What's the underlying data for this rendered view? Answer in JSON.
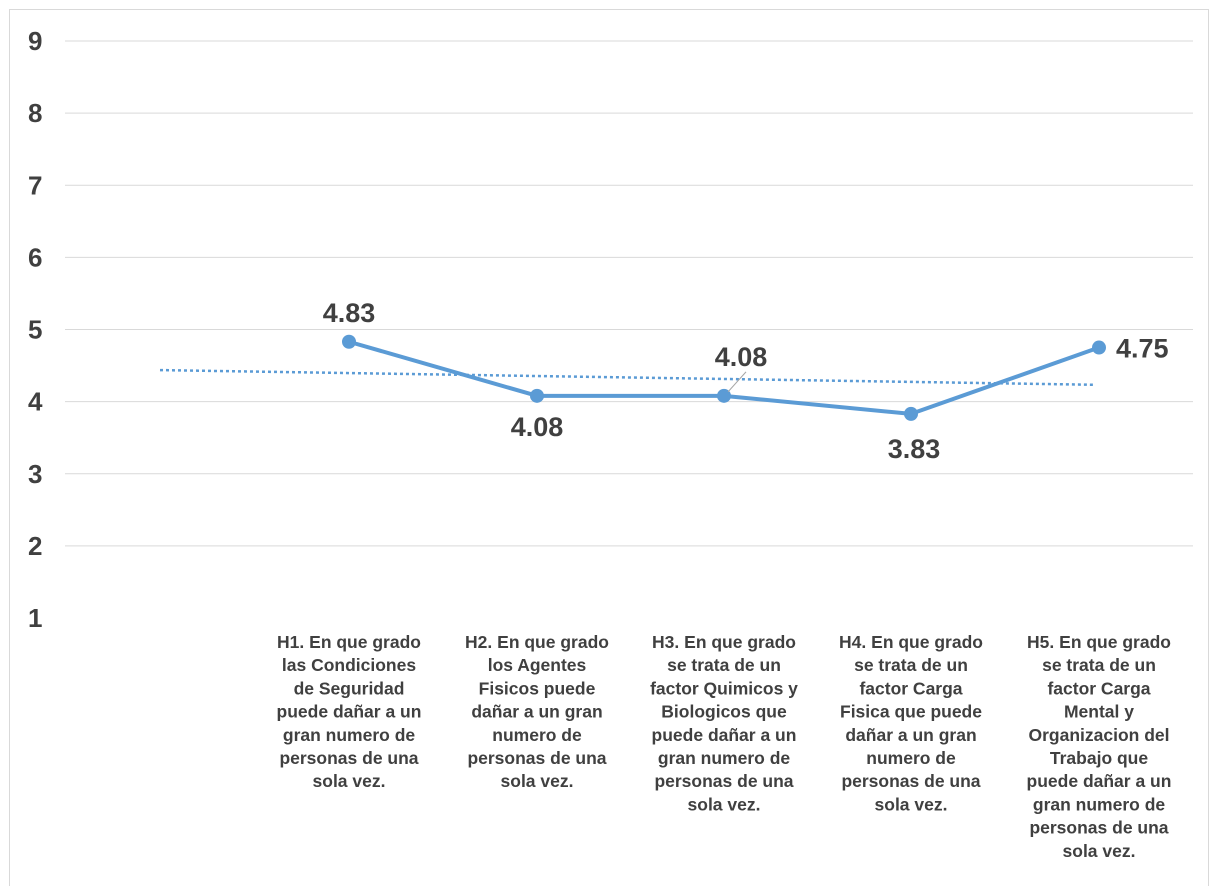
{
  "chart_data": {
    "type": "line",
    "categories": [
      [
        "H1. En que grado",
        "las Condiciones",
        "de Seguridad",
        "puede dañar a un",
        "gran numero de",
        "personas de una",
        "sola vez."
      ],
      [
        "H2. En que grado",
        "los Agentes",
        "Fisicos puede",
        "dañar a un gran",
        "numero de",
        "personas de una",
        "sola vez."
      ],
      [
        "H3. En que grado",
        "se trata de un",
        "factor Quimicos y",
        "Biologicos que",
        "puede dañar a un",
        "gran numero de",
        "personas de una",
        "sola vez."
      ],
      [
        "H4. En que grado",
        "se trata de un",
        "factor Carga",
        "Fisica que puede",
        "dañar a un gran",
        "numero de",
        "personas de una",
        "sola vez."
      ],
      [
        "H5. En que grado",
        "se trata de un",
        "factor Carga",
        "Mental y",
        "Organizacion del",
        "Trabajo que",
        "puede dañar a un",
        "gran numero de",
        "personas de una",
        "sola vez."
      ]
    ],
    "values": [
      4.83,
      4.08,
      4.08,
      3.83,
      4.75
    ],
    "data_labels": [
      "4.83",
      "4.08",
      "4.08",
      "3.83",
      "4.75"
    ],
    "trendline": {
      "type": "linear",
      "style": "dotted"
    },
    "ylim": [
      1,
      9
    ],
    "yticks": [
      "1",
      "2",
      "3",
      "4",
      "5",
      "6",
      "7",
      "8",
      "9"
    ],
    "grid": true,
    "legend": "none",
    "title": "",
    "xlabel": "",
    "ylabel": "",
    "colors": {
      "series": "#5b9bd5",
      "grid": "#d9d9d9",
      "text": "#404040"
    }
  }
}
